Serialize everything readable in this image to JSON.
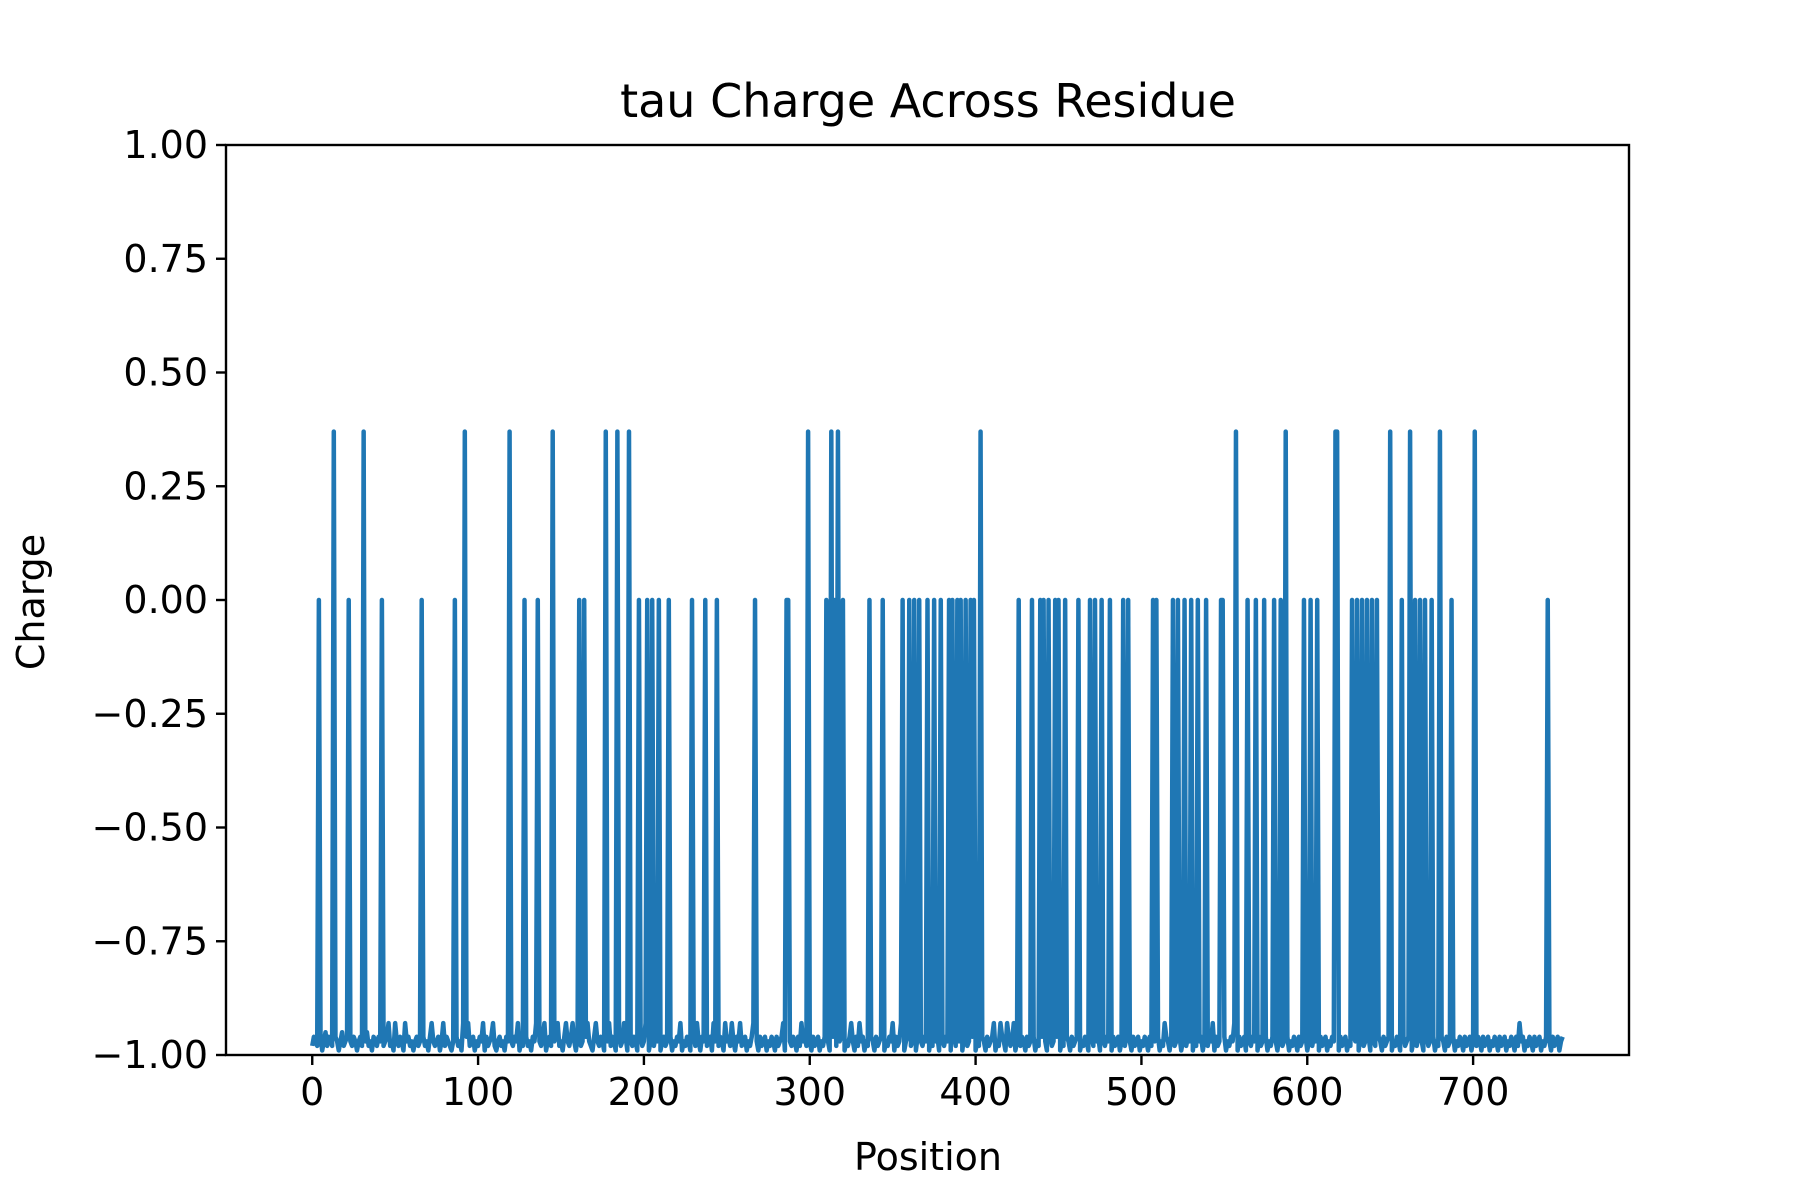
{
  "chart_data": {
    "type": "line",
    "title": "tau Charge Across Residue",
    "xlabel": "Position",
    "ylabel": "Charge",
    "xlim": [
      -52,
      794
    ],
    "ylim": [
      -1.0,
      1.0
    ],
    "x_ticks": [
      0,
      100,
      200,
      300,
      400,
      500,
      600,
      700
    ],
    "x_tick_labels": [
      "0",
      "100",
      "200",
      "300",
      "400",
      "500",
      "600",
      "700"
    ],
    "y_ticks": [
      1.0,
      0.75,
      0.5,
      0.25,
      0.0,
      -0.25,
      -0.5,
      -0.75,
      -1.0
    ],
    "y_tick_labels": [
      "1.00",
      "0.75",
      "0.50",
      "0.25",
      "0.00",
      "−0.25",
      "−0.50",
      "−0.75",
      "−1.00"
    ],
    "grid": false,
    "legend": "none",
    "colors": {
      "series": "#1f77b4",
      "axes": "#000000",
      "background": "#ffffff"
    },
    "series": [
      {
        "x_start": 0,
        "baseline": -0.97,
        "values": [
          -0.98,
          -0.96,
          -0.97,
          -0.98,
          0.0,
          -0.96,
          -0.99,
          -0.97,
          -0.95,
          -0.98,
          -0.96,
          -0.97,
          -0.98,
          0.37,
          -0.96,
          -0.97,
          -0.99,
          -0.97,
          -0.95,
          -0.98,
          -0.97,
          -0.96,
          0.0,
          -0.97,
          -0.98,
          -0.96,
          -0.97,
          -0.99,
          -0.97,
          -0.96,
          -0.98,
          0.37,
          -0.97,
          -0.95,
          -0.98,
          -0.97,
          -0.99,
          -0.96,
          -0.97,
          -0.98,
          -0.96,
          -0.97,
          0.0,
          -0.98,
          -0.97,
          -0.96,
          -0.93,
          -0.98,
          -0.97,
          -0.99,
          -0.93,
          -0.97,
          -0.98,
          -0.96,
          -0.97,
          -0.99,
          -0.93,
          -0.97,
          -0.96,
          -0.98,
          -0.97,
          -0.99,
          -0.97,
          -0.96,
          -0.98,
          -0.97,
          0.0,
          -0.96,
          -0.98,
          -0.97,
          -0.99,
          -0.96,
          -0.93,
          -0.97,
          -0.98,
          -0.97,
          -0.96,
          -0.99,
          -0.97,
          -0.93,
          -0.98,
          -0.96,
          -0.97,
          -0.98,
          -0.99,
          -0.97,
          0.0,
          -0.96,
          -0.98,
          -0.97,
          -0.99,
          -0.93,
          0.37,
          -0.96,
          -0.93,
          -0.98,
          -0.97,
          -0.96,
          -0.99,
          -0.97,
          -0.98,
          -0.96,
          -0.97,
          -0.93,
          -0.99,
          -0.96,
          -0.98,
          -0.97,
          -0.96,
          -0.93,
          -0.98,
          -0.99,
          -0.97,
          -0.96,
          -0.98,
          -0.97,
          -0.99,
          -0.96,
          -0.97,
          0.37,
          -0.97,
          -0.98,
          -0.96,
          -0.97,
          -0.93,
          -0.99,
          -0.97,
          -0.98,
          0.0,
          -0.96,
          -0.98,
          -0.97,
          -0.99,
          -0.96,
          -0.97,
          -0.93,
          0.0,
          -0.97,
          -0.98,
          -0.96,
          -0.93,
          -0.99,
          -0.97,
          -0.96,
          -0.98,
          0.37,
          -0.97,
          -0.96,
          -0.93,
          -0.98,
          -0.97,
          -0.99,
          -0.96,
          -0.93,
          -0.97,
          -0.98,
          -0.96,
          -0.93,
          -0.97,
          -0.99,
          -0.96,
          0.0,
          -0.98,
          -0.97,
          0.0,
          -0.96,
          -0.93,
          -0.97,
          -0.98,
          -0.99,
          -0.96,
          -0.93,
          -0.97,
          -0.98,
          -0.96,
          -0.97,
          -0.99,
          0.37,
          -0.97,
          -0.93,
          -0.98,
          -0.96,
          -0.97,
          -0.99,
          0.37,
          -0.96,
          -0.98,
          -0.97,
          -0.93,
          -0.96,
          -0.99,
          0.37,
          -0.97,
          -0.98,
          -0.96,
          -0.97,
          -0.99,
          0.0,
          -0.96,
          -0.98,
          -0.97,
          -0.93,
          0.0,
          -0.99,
          -0.97,
          0.0,
          -0.98,
          -0.96,
          -0.97,
          0.0,
          -0.99,
          -0.97,
          -0.96,
          -0.98,
          -0.97,
          0.0,
          -0.96,
          -0.99,
          -0.97,
          -0.98,
          -0.96,
          -0.97,
          -0.93,
          -0.99,
          -0.97,
          -0.98,
          -0.96,
          -0.97,
          -0.99,
          0.0,
          -0.96,
          -0.98,
          -0.93,
          -0.97,
          -0.99,
          -0.96,
          -0.97,
          0.0,
          -0.98,
          -0.97,
          -0.96,
          -0.99,
          -0.93,
          -0.97,
          0.0,
          -0.98,
          -0.96,
          -0.97,
          -0.99,
          -0.93,
          -0.97,
          -0.96,
          -0.98,
          -0.93,
          -0.97,
          -0.99,
          -0.96,
          -0.97,
          -0.93,
          -0.98,
          -0.97,
          -0.96,
          -0.99,
          -0.97,
          -0.98,
          -0.96,
          -0.93,
          0.0,
          -0.97,
          -0.99,
          -0.96,
          -0.98,
          -0.97,
          -0.96,
          -0.99,
          -0.97,
          -0.98,
          -0.96,
          -0.97,
          -0.99,
          -0.96,
          -0.98,
          -0.97,
          -0.96,
          -0.93,
          -0.99,
          0.0,
          0.0,
          -0.97,
          -0.98,
          -0.96,
          -0.97,
          -0.99,
          -0.96,
          -0.98,
          -0.93,
          -0.97,
          -0.96,
          -0.98,
          0.37,
          -0.97,
          -0.99,
          -0.96,
          -0.98,
          -0.97,
          -0.96,
          -0.99,
          -0.97,
          -0.98,
          -0.96,
          0.0,
          -0.97,
          -0.99,
          0.37,
          -0.96,
          0.0,
          -0.98,
          0.37,
          -0.97,
          -0.96,
          0.0,
          -0.99,
          -0.97,
          -0.98,
          -0.96,
          -0.93,
          -0.97,
          -0.99,
          -0.96,
          -0.98,
          -0.93,
          -0.97,
          -0.96,
          -0.99,
          -0.97,
          -0.98,
          0.0,
          -0.96,
          -0.97,
          -0.99,
          -0.96,
          -0.98,
          -0.97,
          -0.96,
          0.0,
          -0.99,
          -0.97,
          -0.98,
          -0.96,
          -0.97,
          -0.93,
          -0.99,
          -0.96,
          -0.98,
          -0.97,
          -0.93,
          0.0,
          -0.99,
          -0.97,
          -0.96,
          0.0,
          -0.98,
          -0.97,
          0.0,
          -0.99,
          -0.96,
          0.0,
          -0.97,
          -0.98,
          -0.96,
          -0.97,
          0.0,
          -0.99,
          -0.96,
          -0.98,
          0.0,
          -0.97,
          -0.96,
          -0.99,
          0.0,
          -0.97,
          -0.98,
          -0.96,
          -0.97,
          0.0,
          -0.99,
          0.0,
          -0.96,
          -0.98,
          0.0,
          -0.97,
          0.0,
          -0.99,
          -0.96,
          0.0,
          -0.98,
          -0.97,
          0.0,
          -0.96,
          0.0,
          -0.99,
          -0.97,
          -0.98,
          0.37,
          -0.96,
          -0.97,
          -0.99,
          -0.96,
          -0.98,
          -0.97,
          -0.96,
          -0.93,
          -0.99,
          -0.97,
          -0.98,
          -0.93,
          -0.96,
          -0.97,
          -0.99,
          -0.93,
          -0.96,
          -0.98,
          -0.97,
          -0.93,
          -0.99,
          -0.97,
          0.0,
          -0.98,
          -0.96,
          -0.97,
          -0.99,
          -0.96,
          -0.98,
          -0.97,
          0.0,
          -0.96,
          -0.99,
          -0.97,
          -0.98,
          0.0,
          -0.96,
          0.0,
          -0.97,
          -0.99,
          0.0,
          -0.96,
          -0.98,
          -0.97,
          0.0,
          -0.96,
          0.0,
          -0.99,
          -0.97,
          -0.98,
          0.0,
          -0.96,
          -0.97,
          -0.99,
          -0.96,
          -0.98,
          -0.97,
          -0.96,
          0.0,
          -0.99,
          -0.97,
          -0.98,
          -0.96,
          -0.97,
          -0.99,
          0.0,
          -0.96,
          -0.98,
          0.0,
          -0.97,
          -0.96,
          -0.99,
          0.0,
          -0.97,
          -0.98,
          -0.96,
          -0.97,
          0.0,
          -0.99,
          -0.96,
          -0.98,
          -0.97,
          -0.96,
          -0.99,
          -0.97,
          0.0,
          -0.98,
          -0.96,
          0.0,
          -0.97,
          -0.99,
          -0.96,
          -0.98,
          -0.97,
          -0.96,
          -0.99,
          -0.97,
          -0.98,
          -0.96,
          -0.97,
          -0.99,
          -0.96,
          -0.98,
          0.0,
          -0.97,
          0.0,
          -0.96,
          -0.99,
          -0.97,
          -0.98,
          -0.93,
          -0.96,
          -0.97,
          -0.99,
          -0.96,
          0.0,
          -0.98,
          -0.97,
          0.0,
          -0.96,
          -0.99,
          -0.97,
          0.0,
          -0.98,
          -0.96,
          -0.97,
          0.0,
          -0.99,
          -0.96,
          -0.98,
          0.0,
          -0.97,
          -0.96,
          -0.99,
          -0.97,
          0.0,
          -0.98,
          -0.96,
          -0.97,
          -0.93,
          -0.99,
          -0.96,
          -0.98,
          -0.97,
          0.0,
          0.0,
          -0.96,
          -0.99,
          -0.97,
          -0.98,
          -0.96,
          -0.97,
          -0.93,
          0.37,
          -0.99,
          -0.96,
          -0.98,
          -0.97,
          -0.96,
          -0.99,
          0.0,
          -0.97,
          -0.98,
          -0.96,
          -0.97,
          0.0,
          -0.99,
          -0.96,
          -0.98,
          -0.97,
          0.0,
          -0.96,
          -0.99,
          -0.97,
          -0.98,
          -0.96,
          0.0,
          -0.97,
          -0.99,
          -0.96,
          0.0,
          -0.98,
          -0.97,
          0.37,
          -0.96,
          -0.99,
          -0.97,
          -0.98,
          -0.96,
          -0.97,
          -0.99,
          -0.96,
          -0.98,
          -0.97,
          0.0,
          -0.96,
          -0.99,
          -0.97,
          0.0,
          -0.98,
          -0.96,
          -0.97,
          0.0,
          -0.99,
          -0.96,
          -0.98,
          -0.97,
          -0.96,
          -0.99,
          -0.97,
          -0.98,
          -0.96,
          -0.97,
          0.37,
          0.37,
          -0.99,
          -0.96,
          -0.98,
          -0.97,
          -0.96,
          -0.99,
          -0.97,
          -0.98,
          0.0,
          -0.96,
          -0.97,
          0.0,
          -0.99,
          -0.96,
          0.0,
          -0.98,
          -0.97,
          0.0,
          -0.96,
          -0.99,
          0.0,
          -0.97,
          -0.98,
          0.0,
          -0.96,
          -0.97,
          -0.99,
          -0.96,
          -0.98,
          -0.97,
          -0.96,
          0.37,
          -0.99,
          -0.97,
          -0.98,
          -0.96,
          -0.97,
          -0.99,
          0.0,
          -0.96,
          -0.98,
          -0.97,
          -0.96,
          0.37,
          -0.99,
          -0.97,
          0.0,
          -0.98,
          -0.96,
          0.0,
          -0.97,
          -0.99,
          0.0,
          -0.96,
          -0.98,
          -0.97,
          0.0,
          -0.96,
          -0.99,
          -0.97,
          -0.98,
          0.37,
          -0.96,
          -0.97,
          -0.99,
          -0.96,
          -0.98,
          -0.97,
          0.0,
          -0.96,
          -0.99,
          -0.97,
          -0.98,
          -0.96,
          -0.97,
          -0.99,
          -0.96,
          -0.98,
          -0.97,
          -0.96,
          -0.99,
          -0.97,
          0.37,
          -0.98,
          -0.96,
          -0.97,
          -0.99,
          -0.96,
          -0.98,
          -0.97,
          -0.96,
          -0.99,
          -0.97,
          -0.98,
          -0.96,
          -0.97,
          -0.99,
          -0.96,
          -0.98,
          -0.97,
          -0.96,
          -0.99,
          -0.97,
          -0.98,
          -0.96,
          -0.97,
          -0.99,
          -0.96,
          -0.98,
          -0.93,
          -0.97,
          -0.96,
          -0.99,
          -0.97,
          -0.98,
          -0.96,
          -0.97,
          -0.99,
          -0.96,
          -0.98,
          -0.97,
          -0.96,
          -0.99,
          -0.97,
          -0.98,
          -0.96,
          0.0,
          -0.97,
          -0.99,
          -0.96,
          -0.98,
          -0.97,
          -0.96,
          -0.99,
          -0.97,
          -0.96
        ]
      }
    ]
  }
}
